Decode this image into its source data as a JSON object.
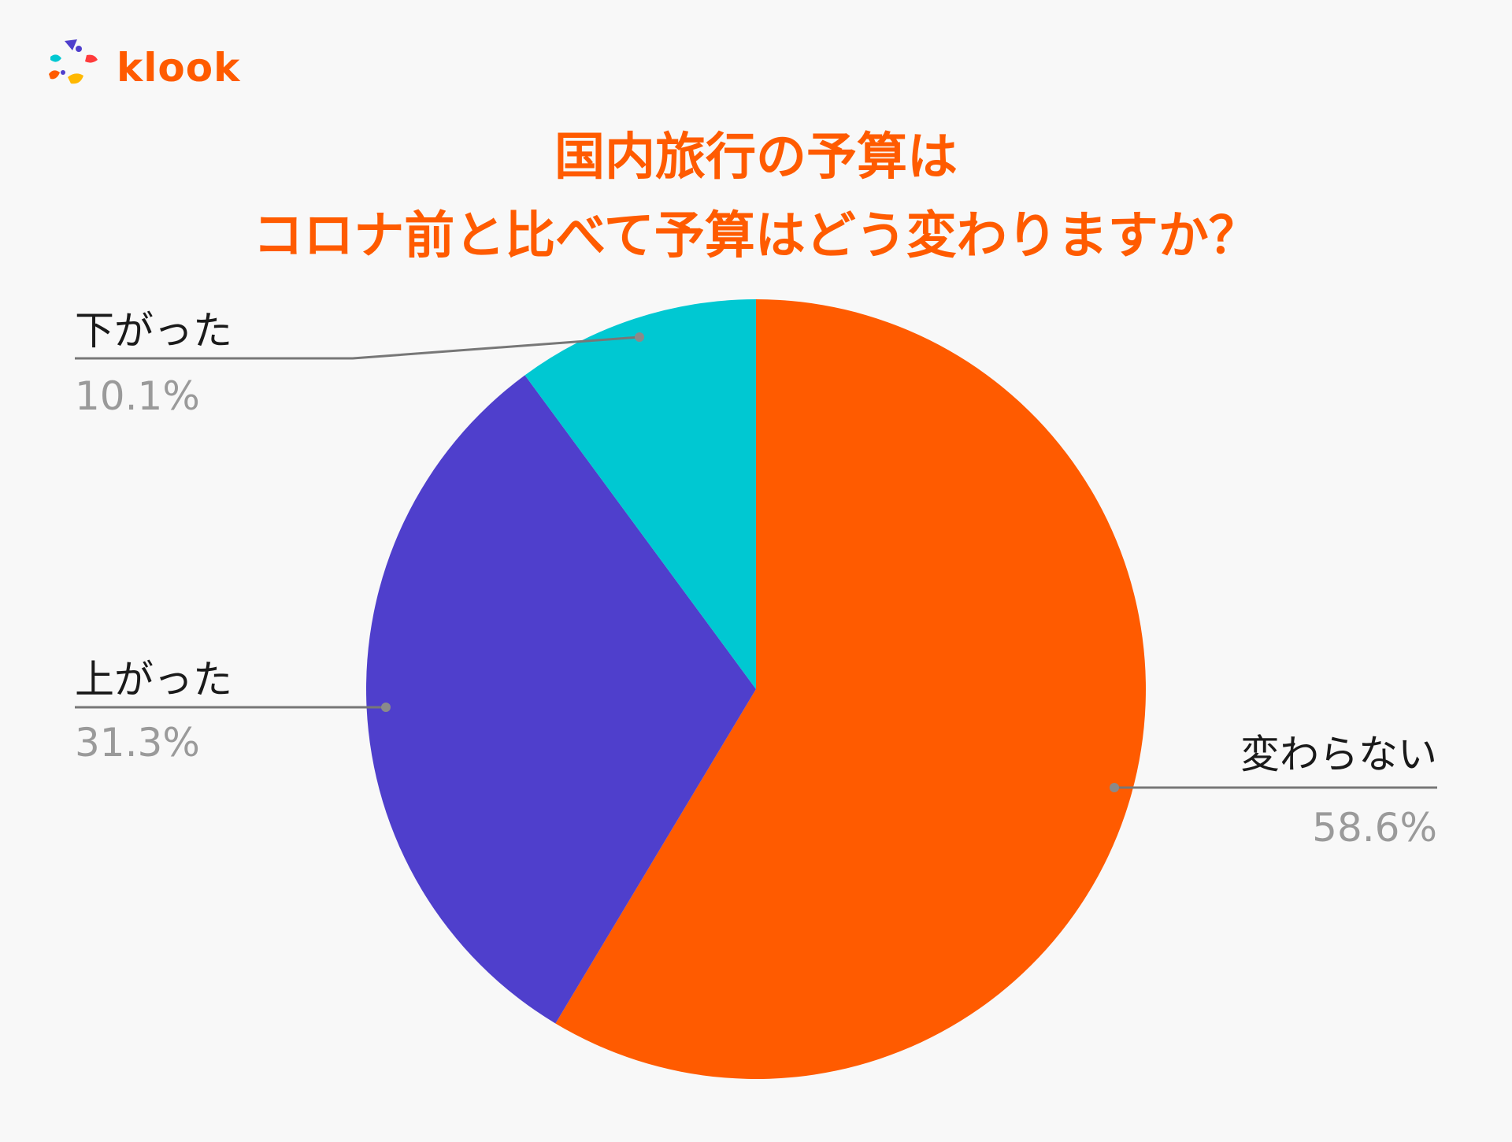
{
  "logo": {
    "name": "klook",
    "icon": "klook-logo-icon",
    "color": "#ff5b00"
  },
  "title": {
    "line1": "国内旅行の予算は",
    "line2": "コロナ前と比べて予算はどう変わりますか？",
    "color": "#ff5b00"
  },
  "chart_data": {
    "type": "pie",
    "start": "12 o'clock",
    "direction": "clockwise",
    "slices": [
      {
        "label": "変わらない",
        "value": 58.6,
        "display": "58.6%",
        "color": "#ff5b00"
      },
      {
        "label": "上がった",
        "value": 31.3,
        "display": "31.3%",
        "color": "#4f3fcc"
      },
      {
        "label": "下がった",
        "value": 10.1,
        "display": "10.1%",
        "color": "#00c8d2"
      }
    ],
    "leader_line_color": "#777777",
    "legend": "none"
  }
}
